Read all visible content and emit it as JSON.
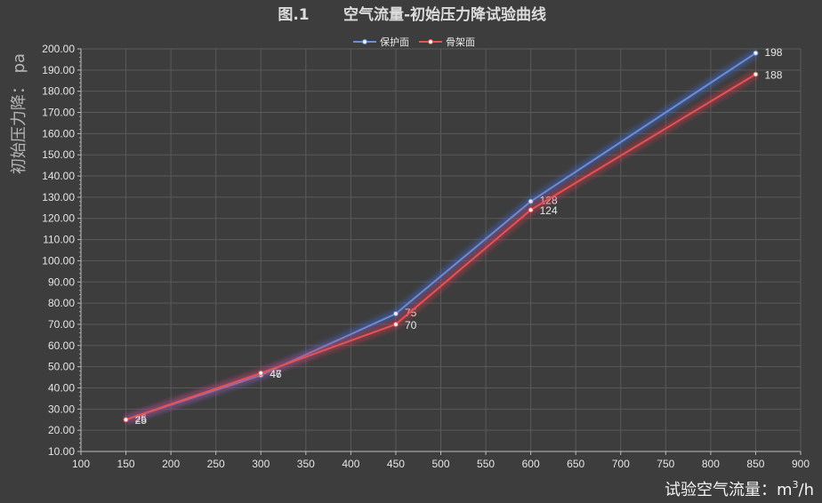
{
  "chart_data": {
    "type": "line",
    "title_prefix": "图.1",
    "title": "空气流量-初始压力降试验曲线",
    "xlabel": "试验空气流量：m",
    "xlabel_sup": "3",
    "xlabel_suffix": "/h",
    "ylabel": "初始压力降： pa",
    "xlim": [
      100,
      900
    ],
    "ylim": [
      10,
      200
    ],
    "x_ticks": [
      100,
      150,
      200,
      250,
      300,
      350,
      400,
      450,
      500,
      550,
      600,
      650,
      700,
      750,
      800,
      850,
      900
    ],
    "y_ticks": [
      "10.00",
      "20.00",
      "30.00",
      "40.00",
      "50.00",
      "60.00",
      "70.00",
      "80.00",
      "90.00",
      "100.00",
      "110.00",
      "120.00",
      "130.00",
      "140.00",
      "150.00",
      "160.00",
      "170.00",
      "180.00",
      "190.00",
      "200.00"
    ],
    "grid": true,
    "legend_position": "top-center",
    "x": [
      150,
      300,
      450,
      600,
      850
    ],
    "series": [
      {
        "name": "保护面",
        "color": "#6b8fd6",
        "glow": "#3f6fe0",
        "values": [
          25,
          46,
          75,
          128,
          198
        ],
        "labels": [
          "25",
          "46",
          "75",
          "128",
          "198"
        ]
      },
      {
        "name": "骨架面",
        "color": "#e05555",
        "glow": "#e0304a",
        "values": [
          25,
          47,
          70,
          124,
          188
        ],
        "labels": [
          "25",
          "47",
          "70",
          "124",
          "188"
        ]
      }
    ]
  }
}
